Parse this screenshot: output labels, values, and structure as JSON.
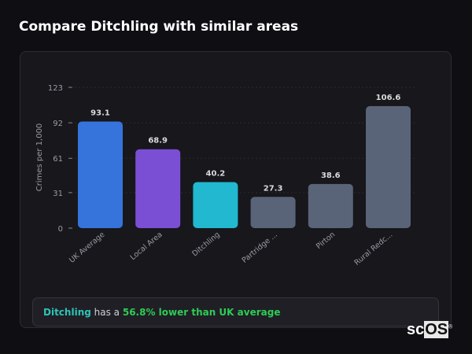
{
  "header": {
    "title": "Compare Ditchling with similar areas"
  },
  "chart_data": {
    "type": "bar",
    "title": "",
    "xlabel": "",
    "ylabel": "Crimes per 1,000",
    "ylim": [
      0,
      123
    ],
    "yticks": [
      0,
      31,
      61,
      92,
      123
    ],
    "grid": true,
    "categories": [
      "UK Average",
      "Local Area",
      "Ditchling",
      "Partridge ...",
      "Pirton",
      "Rural Redc..."
    ],
    "values": [
      93.1,
      68.9,
      40.2,
      27.3,
      38.6,
      106.6
    ],
    "value_labels": [
      "93.1",
      "68.9",
      "40.2",
      "27.3",
      "38.6",
      "106.6"
    ],
    "colors": [
      "#3674db",
      "#7b4fd4",
      "#21b8d0",
      "#5a6478",
      "#5a6478",
      "#5a6478"
    ]
  },
  "summary": {
    "name": "Ditchling",
    "middle": " has a ",
    "value": "56.8% lower than UK average"
  },
  "logo": {
    "text_a": "sc",
    "text_b": "OS",
    "mark": "®"
  }
}
